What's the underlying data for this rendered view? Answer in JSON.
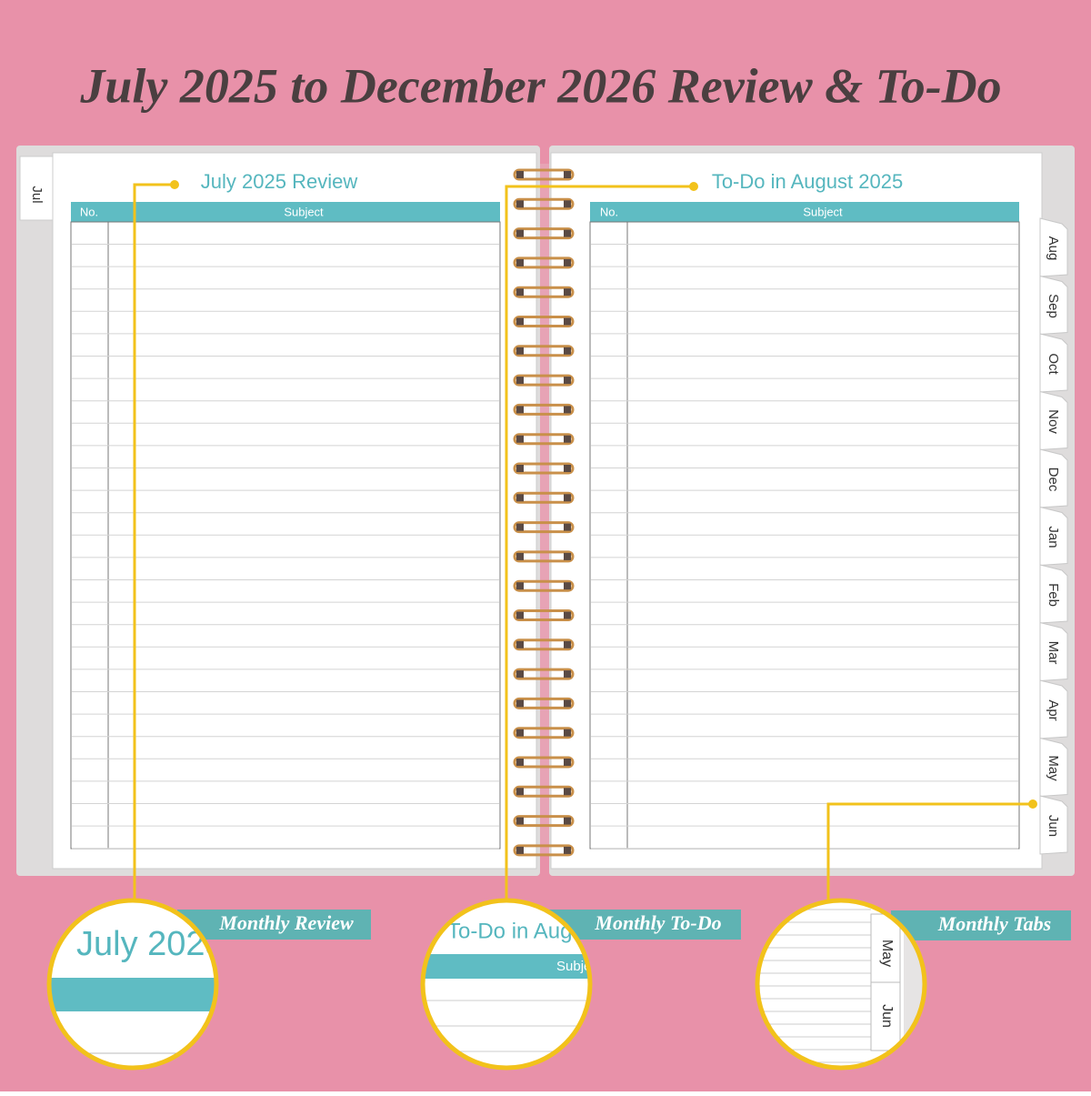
{
  "header": {
    "title": "July 2025 to December 2026 Review & To-Do"
  },
  "left_page": {
    "tab": "Jul",
    "title": "July 2025 Review",
    "columns": [
      "No.",
      "Subject"
    ]
  },
  "right_page": {
    "title": "To-Do in August 2025",
    "columns": [
      "No.",
      "Subject"
    ],
    "tabs": [
      "Aug",
      "Sep",
      "Oct",
      "Nov",
      "Dec",
      "Jan",
      "Feb",
      "Mar",
      "Apr",
      "May",
      "Jun"
    ]
  },
  "callouts": [
    {
      "label": "Monthly Review"
    },
    {
      "label": "Monthly To-Do"
    },
    {
      "label": "Monthly Tabs"
    }
  ]
}
